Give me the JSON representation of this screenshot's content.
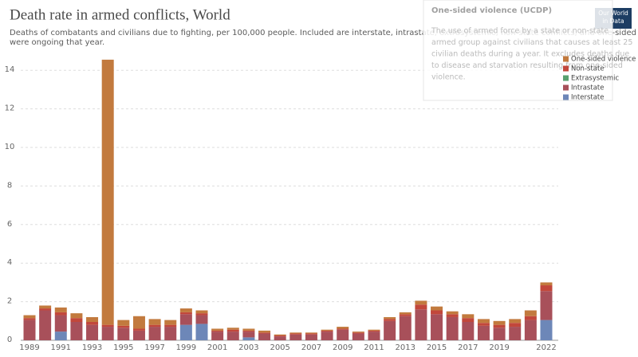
{
  "chart_data": {
    "type": "stacked-bar",
    "title": "Death rate in armed conflicts, World",
    "subtitle": [
      "Deaths of combatants and civilians due to fighting, per 100,000 people. Included are interstate, intrastate, extrasystemic, non-state conflicts, and one-sided violence that",
      "were ongoing that year."
    ],
    "logo": [
      "Our World",
      "in Data"
    ],
    "categories": [
      "1989",
      null,
      "1991",
      null,
      "1993",
      null,
      "1995",
      null,
      "1997",
      null,
      "1999",
      null,
      "2001",
      null,
      "2003",
      null,
      "2005",
      null,
      "2007",
      null,
      "2009",
      null,
      "2011",
      null,
      "2013",
      null,
      "2015",
      null,
      "2017",
      null,
      "2019",
      null,
      null,
      "2022"
    ],
    "series": [
      {
        "name": "Interstate",
        "color": "#6d87b8",
        "values": [
          0,
          0,
          0.45,
          0,
          0,
          0,
          0,
          0,
          0,
          0,
          0.8,
          0.85,
          0,
          0,
          0.15,
          0,
          0,
          0,
          0,
          0,
          0,
          0,
          0,
          0,
          0,
          0,
          0,
          0,
          0,
          0,
          0,
          0,
          0,
          1.05
        ]
      },
      {
        "name": "Intrastate",
        "color": "#a8505a",
        "values": [
          1.05,
          1.55,
          0.85,
          0.95,
          0.8,
          0.7,
          0.65,
          0.5,
          0.7,
          0.7,
          0.55,
          0.45,
          0.45,
          0.45,
          0.3,
          0.35,
          0.2,
          0.3,
          0.3,
          0.45,
          0.55,
          0.35,
          0.45,
          1.0,
          1.25,
          1.6,
          1.35,
          1.2,
          0.95,
          0.75,
          0.65,
          0.7,
          1.05,
          1.5
        ]
      },
      {
        "name": "Extrasystemic",
        "color": "#58a16f",
        "values": [
          0,
          0,
          0,
          0,
          0,
          0,
          0,
          0,
          0,
          0,
          0,
          0,
          0,
          0,
          0,
          0,
          0,
          0,
          0,
          0,
          0,
          0,
          0,
          0,
          0,
          0,
          0,
          0,
          0,
          0,
          0,
          0,
          0,
          0
        ]
      },
      {
        "name": "Non-state",
        "color": "#c2473b",
        "values": [
          0.1,
          0.1,
          0.15,
          0.2,
          0.15,
          0.1,
          0.1,
          0.1,
          0.1,
          0.1,
          0.1,
          0.1,
          0.05,
          0.1,
          0.05,
          0.05,
          0.05,
          0.05,
          0.05,
          0.05,
          0.05,
          0.05,
          0.05,
          0.1,
          0.1,
          0.25,
          0.2,
          0.15,
          0.2,
          0.15,
          0.15,
          0.2,
          0.2,
          0.3
        ]
      },
      {
        "name": "One-sided violence",
        "color": "#c27a3e",
        "values": [
          0.15,
          0.15,
          0.25,
          0.25,
          0.25,
          13.75,
          0.3,
          0.65,
          0.3,
          0.25,
          0.2,
          0.15,
          0.1,
          0.1,
          0.1,
          0.1,
          0.05,
          0.05,
          0.05,
          0.05,
          0.1,
          0.05,
          0.05,
          0.1,
          0.1,
          0.2,
          0.2,
          0.15,
          0.2,
          0.2,
          0.2,
          0.2,
          0.3,
          0.15
        ]
      }
    ],
    "ylim": [
      0,
      15
    ],
    "yticks": [
      0,
      2,
      4,
      6,
      8,
      10,
      12,
      14
    ],
    "grid": true,
    "legend": "right",
    "tooltip": {
      "title": "One-sided violence (UCDP)",
      "lines": [
        "The use of armed force by a state or non-state",
        "armed group against civilians that causes at least 25",
        "civilian deaths during a year. It excludes deaths due",
        "to disease and starvation resulting from one-sided",
        "violence."
      ]
    }
  }
}
